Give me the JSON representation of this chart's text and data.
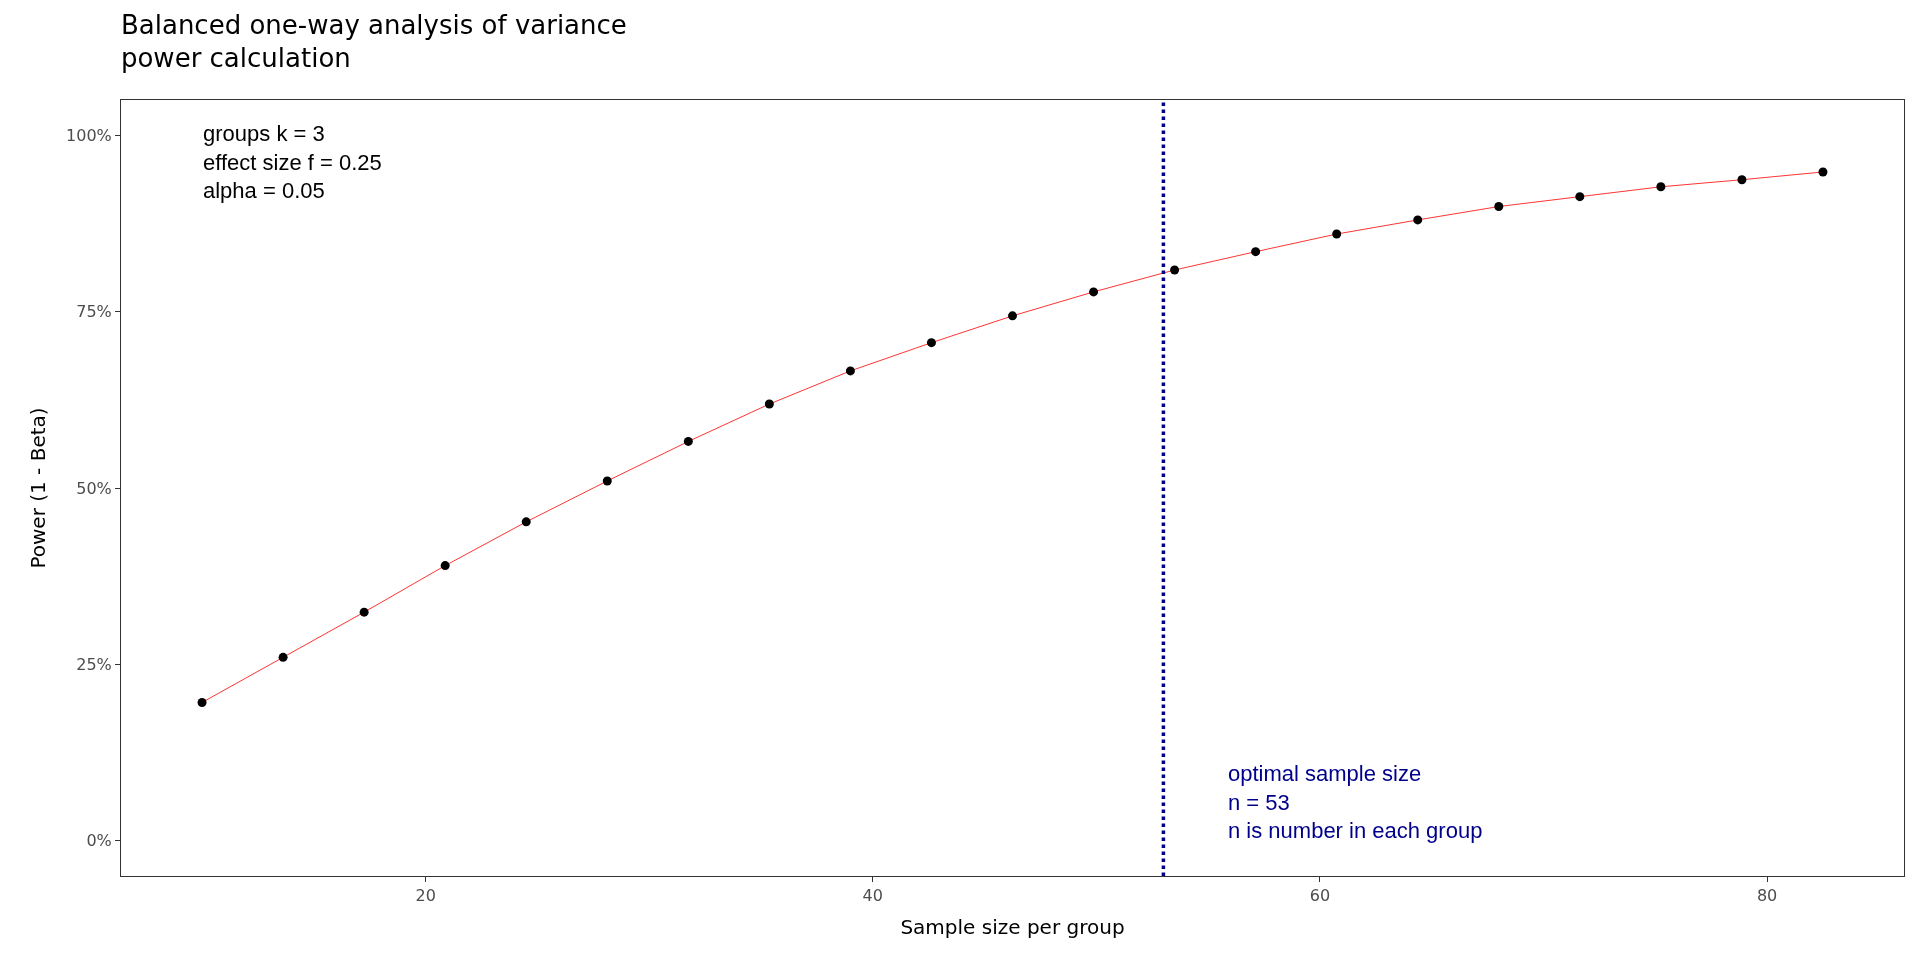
{
  "chart_data": {
    "type": "line",
    "title": "Balanced one-way analysis of variance\npower calculation",
    "xlabel": "Sample size per group",
    "ylabel": "Power (1 - Beta)",
    "x": [
      10,
      13.625,
      17.25,
      20.875,
      24.5,
      28.125,
      31.75,
      35.375,
      39,
      42.625,
      46.25,
      49.875,
      53.5,
      57.125,
      60.75,
      64.375,
      68,
      71.625,
      75.25,
      78.875,
      82.5
    ],
    "series": [
      {
        "color": "#ff0000",
        "marker": "circle",
        "values": [
          19.6,
          26.0,
          32.4,
          39.0,
          45.2,
          51.0,
          56.6,
          61.9,
          66.6,
          70.6,
          74.4,
          77.8,
          80.9,
          83.5,
          86.0,
          88.0,
          89.9,
          91.3,
          92.7,
          93.7,
          94.8
        ]
      }
    ],
    "xlim": [
      6.375,
      86.125
    ],
    "xticks": [
      20,
      40,
      60,
      80
    ],
    "ylim": [
      -5,
      105
    ],
    "yticks": [
      {
        "value": 0,
        "label": "0%"
      },
      {
        "value": 25,
        "label": "25%"
      },
      {
        "value": 50,
        "label": "50%"
      },
      {
        "value": 75,
        "label": "75%"
      },
      {
        "value": 100,
        "label": "100%"
      }
    ],
    "ref_lines": [
      {
        "axis": "x",
        "value": 53,
        "label": "optimal sample size\nn = 53\nn is number in each group",
        "color": "#00008b",
        "line_style": "dotted"
      }
    ],
    "annotations": [
      "groups k = 3\neffect size f = 0.25\nalpha = 0.05"
    ]
  }
}
